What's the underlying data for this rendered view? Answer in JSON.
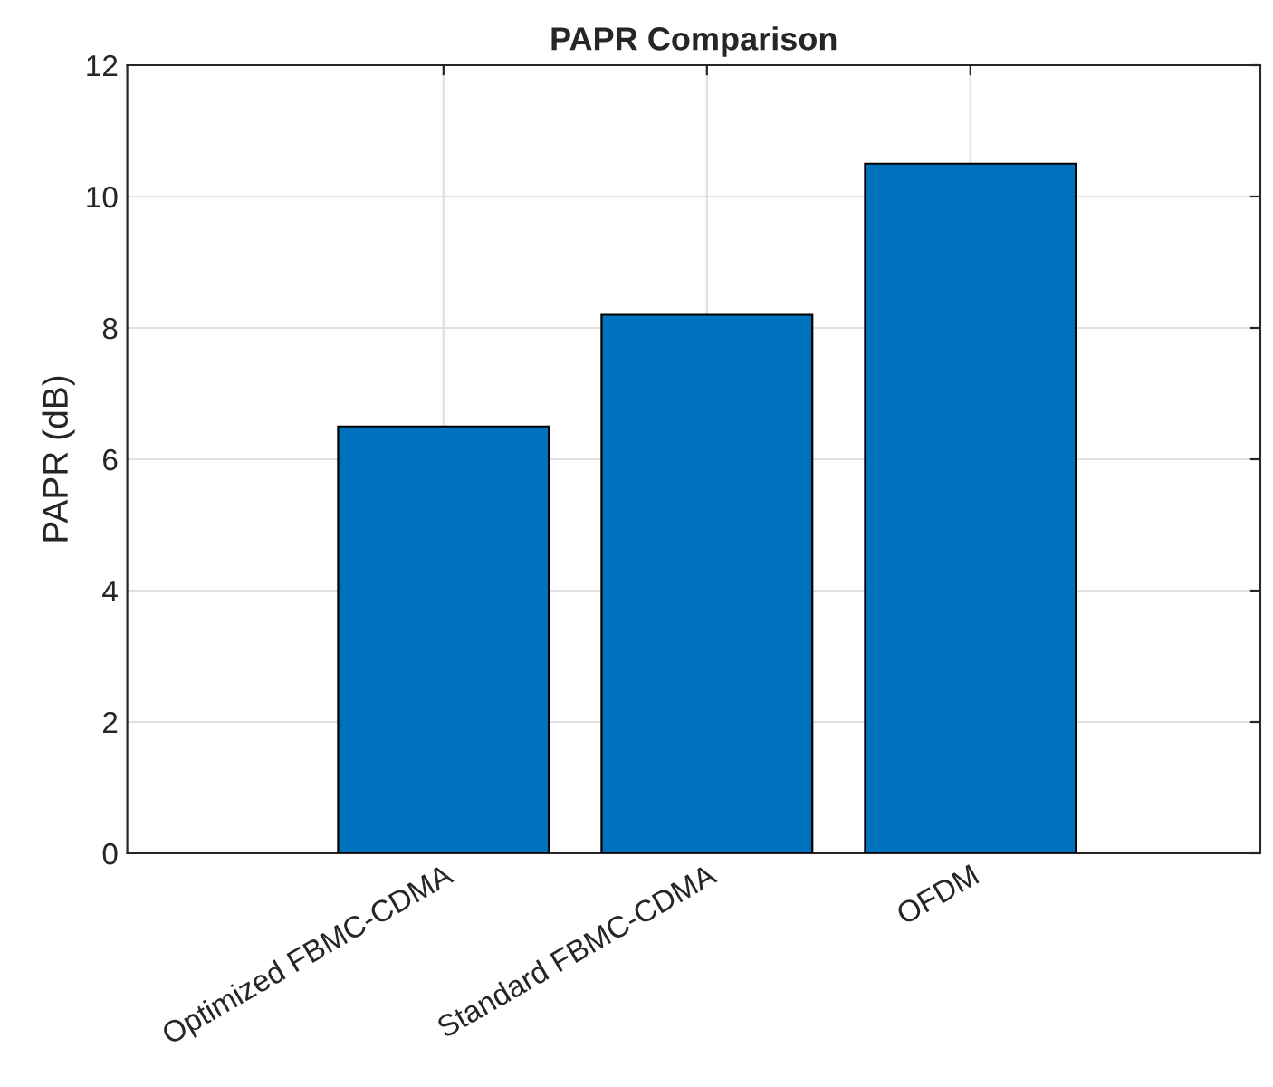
{
  "chart_data": {
    "type": "bar",
    "title": "PAPR Comparison",
    "ylabel": "PAPR (dB)",
    "categories": [
      "Optimized FBMC-CDMA",
      "Standard FBMC-CDMA",
      "OFDM"
    ],
    "values": [
      6.5,
      8.2,
      10.5
    ],
    "color": "#0072bd",
    "ylim": [
      0,
      12
    ],
    "yticks": [
      0,
      2,
      4,
      6,
      8,
      10,
      12
    ],
    "grid": true
  }
}
